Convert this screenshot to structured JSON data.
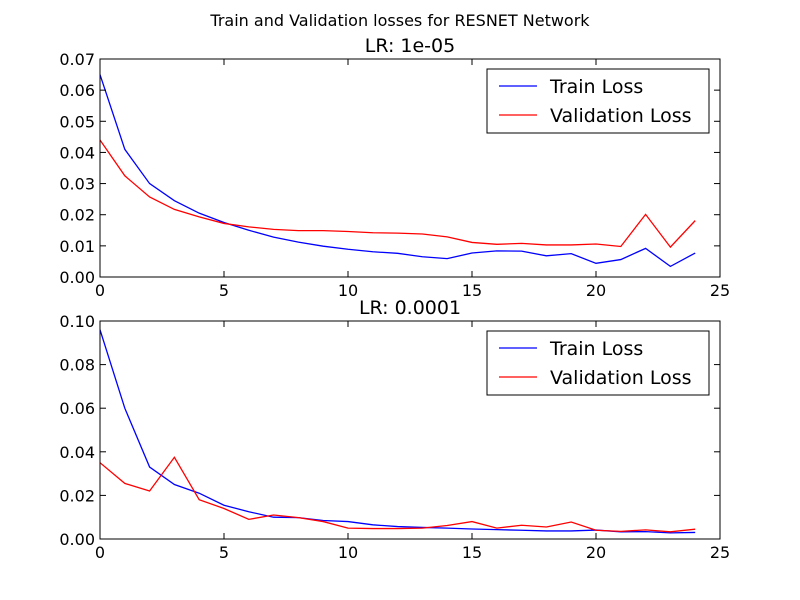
{
  "suptitle": "Train and Validation losses for RESNET Network",
  "chart_data": [
    {
      "type": "line",
      "title": "LR: 1e-05",
      "xlabel": "",
      "ylabel": "",
      "xlim": [
        0,
        25
      ],
      "ylim": [
        0,
        0.07
      ],
      "xticks": [
        "0",
        "5",
        "10",
        "15",
        "20",
        "25"
      ],
      "yticks": [
        "0.00",
        "0.01",
        "0.02",
        "0.03",
        "0.04",
        "0.05",
        "0.06",
        "0.07"
      ],
      "legend_position": "top-right",
      "grid": false,
      "x": [
        0,
        1,
        2,
        3,
        4,
        5,
        6,
        7,
        8,
        9,
        10,
        11,
        12,
        13,
        14,
        15,
        16,
        17,
        18,
        19,
        20,
        21,
        22,
        23,
        24
      ],
      "series": [
        {
          "name": "Train Loss",
          "color": "#0000ff",
          "values": [
            0.065,
            0.041,
            0.03,
            0.0245,
            0.0205,
            0.0175,
            0.015,
            0.0128,
            0.0112,
            0.0099,
            0.0089,
            0.0081,
            0.0076,
            0.0065,
            0.0059,
            0.0077,
            0.0084,
            0.0083,
            0.0068,
            0.0075,
            0.0044,
            0.0056,
            0.0092,
            0.0034,
            0.0077
          ]
        },
        {
          "name": "Validation Loss",
          "color": "#ff0000",
          "values": [
            0.044,
            0.0325,
            0.0257,
            0.0217,
            0.0193,
            0.0172,
            0.0161,
            0.0153,
            0.0149,
            0.0149,
            0.0146,
            0.0142,
            0.0141,
            0.0138,
            0.0129,
            0.0111,
            0.0105,
            0.0108,
            0.0103,
            0.0103,
            0.0106,
            0.0098,
            0.0201,
            0.0096,
            0.0181
          ]
        }
      ]
    },
    {
      "type": "line",
      "title": "LR: 0.0001",
      "xlabel": "",
      "ylabel": "",
      "xlim": [
        0,
        25
      ],
      "ylim": [
        0,
        0.1
      ],
      "xticks": [
        "0",
        "5",
        "10",
        "15",
        "20",
        "25"
      ],
      "yticks": [
        "0.00",
        "0.02",
        "0.04",
        "0.06",
        "0.08",
        "0.10"
      ],
      "legend_position": "top-right",
      "grid": false,
      "x": [
        0,
        1,
        2,
        3,
        4,
        5,
        6,
        7,
        8,
        9,
        10,
        11,
        12,
        13,
        14,
        15,
        16,
        17,
        18,
        19,
        20,
        21,
        22,
        23,
        24
      ],
      "series": [
        {
          "name": "Train Loss",
          "color": "#0000ff",
          "values": [
            0.096,
            0.06,
            0.033,
            0.025,
            0.021,
            0.0155,
            0.0125,
            0.01,
            0.0098,
            0.0085,
            0.008,
            0.0065,
            0.0057,
            0.0053,
            0.005,
            0.0046,
            0.0043,
            0.004,
            0.0037,
            0.0037,
            0.0041,
            0.0033,
            0.0034,
            0.0028,
            0.003
          ]
        },
        {
          "name": "Validation Loss",
          "color": "#ff0000",
          "values": [
            0.035,
            0.0255,
            0.022,
            0.0375,
            0.018,
            0.014,
            0.009,
            0.011,
            0.0098,
            0.008,
            0.005,
            0.0048,
            0.0048,
            0.005,
            0.0062,
            0.008,
            0.005,
            0.0063,
            0.0055,
            0.0078,
            0.004,
            0.0035,
            0.0042,
            0.0033,
            0.0045
          ]
        }
      ]
    }
  ]
}
